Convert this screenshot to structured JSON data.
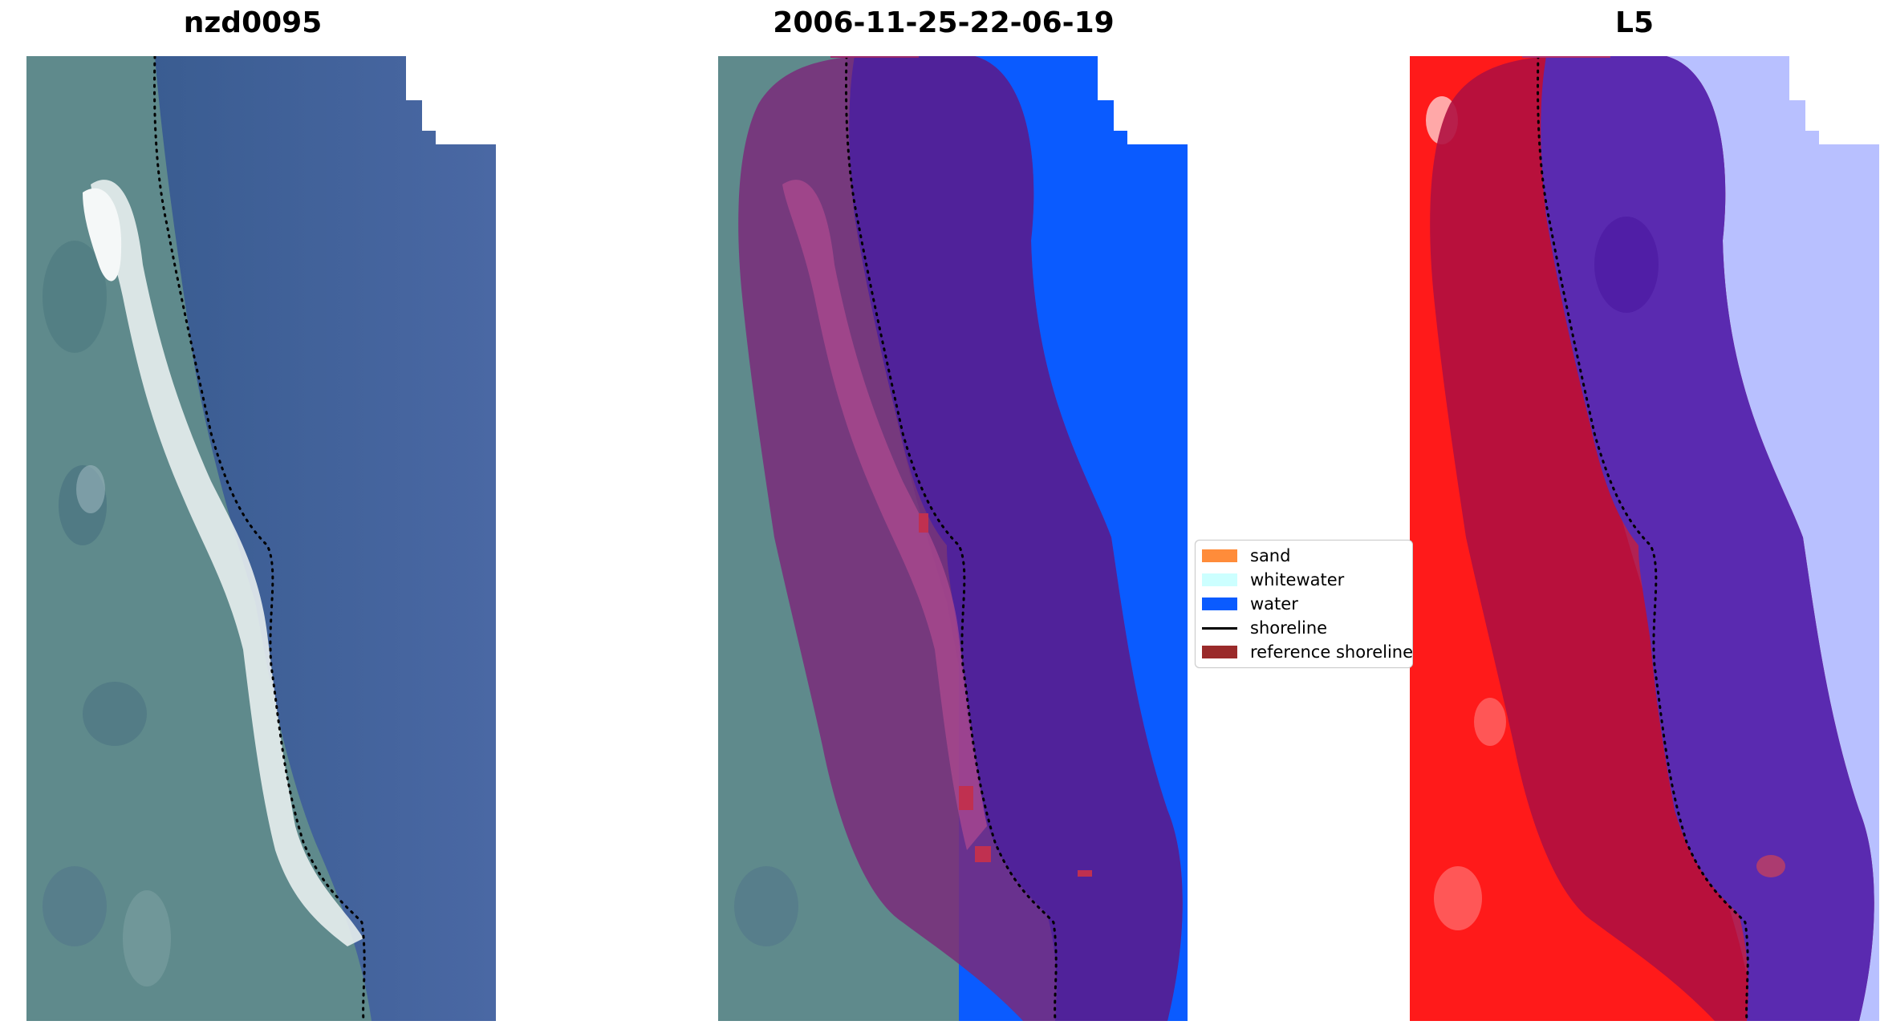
{
  "titles": {
    "panel_1": "nzd0095",
    "panel_2": "2006-11-25-22-06-19",
    "panel_3": "L5"
  },
  "legend": {
    "items": [
      {
        "label": "sand",
        "color": "#ff8c3a",
        "kind": "patch"
      },
      {
        "label": "whitewater",
        "color": "#ccffff",
        "kind": "patch"
      },
      {
        "label": "water",
        "color": "#0a5bff",
        "kind": "patch"
      },
      {
        "label": "shoreline",
        "color": "#000000",
        "kind": "line"
      },
      {
        "label": "reference shoreline",
        "color": "#9a2a2a",
        "kind": "patch"
      }
    ]
  },
  "colors": {
    "satellite_land": "#5f8a8c",
    "satellite_water": "#3e5f90",
    "beach_sand": "#e8eeee",
    "class_water": "#0a5bff",
    "buffer_overlay": "#7a2a7a",
    "ndvi_land": "#ff1a1a",
    "ndvi_water": "#b8c0ff",
    "shoreline": "#000000"
  }
}
